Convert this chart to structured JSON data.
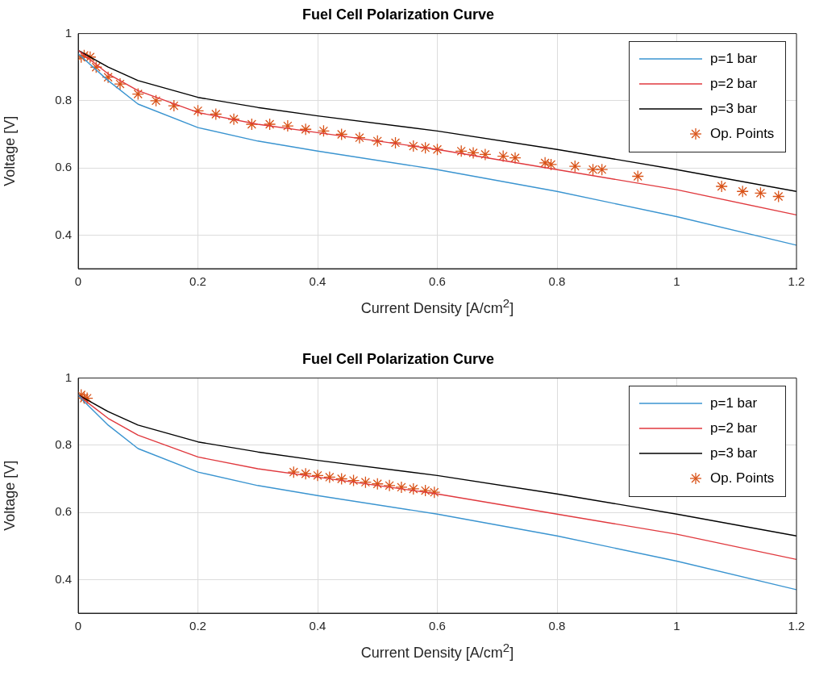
{
  "chart_data": [
    {
      "type": "line",
      "title": "Fuel Cell Polarization Curve",
      "xlabel": "Current Density [A/cm$^{2}$]",
      "ylabel": "Voltage [V]",
      "xlim": [
        0,
        1.2
      ],
      "xticks": [
        0,
        0.2,
        0.4,
        0.6,
        0.8,
        1,
        1.2
      ],
      "ylim": [
        0.3,
        1
      ],
      "yticks": [
        0.4,
        0.6,
        0.8,
        1
      ],
      "grid": true,
      "legend": "top right",
      "series": [
        {
          "name": "p=1 bar",
          "type": "line",
          "color": "#3a94d0",
          "x": [
            0,
            0.05,
            0.1,
            0.2,
            0.3,
            0.4,
            0.6,
            0.8,
            1,
            1.2
          ],
          "values": [
            0.94,
            0.86,
            0.79,
            0.72,
            0.68,
            0.65,
            0.595,
            0.53,
            0.455,
            0.37
          ]
        },
        {
          "name": "p=2 bar",
          "type": "line",
          "color": "#e0393e",
          "x": [
            0,
            0.05,
            0.1,
            0.2,
            0.3,
            0.4,
            0.6,
            0.8,
            1,
            1.2
          ],
          "values": [
            0.95,
            0.88,
            0.83,
            0.765,
            0.73,
            0.705,
            0.655,
            0.595,
            0.535,
            0.46
          ]
        },
        {
          "name": "p=3 bar",
          "type": "line",
          "color": "#000000",
          "x": [
            0,
            0.05,
            0.1,
            0.2,
            0.3,
            0.4,
            0.6,
            0.8,
            1,
            1.2
          ],
          "values": [
            0.95,
            0.9,
            0.86,
            0.81,
            0.78,
            0.755,
            0.71,
            0.655,
            0.595,
            0.53
          ]
        },
        {
          "name": "Op. Points",
          "type": "scatter",
          "marker": "cross",
          "color": "#d95319",
          "x": [
            0.005,
            0.01,
            0.02,
            0.03,
            0.05,
            0.07,
            0.1,
            0.13,
            0.16,
            0.2,
            0.23,
            0.26,
            0.29,
            0.32,
            0.35,
            0.38,
            0.41,
            0.44,
            0.47,
            0.5,
            0.53,
            0.56,
            0.58,
            0.6,
            0.64,
            0.66,
            0.68,
            0.71,
            0.73,
            0.78,
            0.79,
            0.83,
            0.86,
            0.875,
            0.935,
            1.075,
            1.11,
            1.14,
            1.17
          ],
          "values": [
            0.93,
            0.935,
            0.93,
            0.9,
            0.87,
            0.85,
            0.82,
            0.8,
            0.785,
            0.77,
            0.76,
            0.745,
            0.73,
            0.73,
            0.725,
            0.715,
            0.71,
            0.7,
            0.69,
            0.68,
            0.675,
            0.665,
            0.66,
            0.655,
            0.65,
            0.645,
            0.64,
            0.635,
            0.63,
            0.615,
            0.61,
            0.605,
            0.595,
            0.595,
            0.575,
            0.545,
            0.53,
            0.525,
            0.515
          ]
        }
      ]
    },
    {
      "type": "line",
      "title": "Fuel Cell Polarization Curve",
      "xlabel": "Current Density [A/cm$^{2}$]",
      "ylabel": "Voltage [V]",
      "xlim": [
        0,
        1.2
      ],
      "xticks": [
        0,
        0.2,
        0.4,
        0.6,
        0.8,
        1,
        1.2
      ],
      "ylim": [
        0.3,
        1
      ],
      "yticks": [
        0.4,
        0.6,
        0.8,
        1
      ],
      "grid": true,
      "legend": "top right",
      "series": [
        {
          "name": "p=1 bar",
          "type": "line",
          "color": "#3a94d0",
          "x": [
            0,
            0.01,
            0.05,
            0.1,
            0.2,
            0.3,
            0.4,
            0.6,
            0.8,
            1,
            1.2
          ],
          "values": [
            0.95,
            0.93,
            0.86,
            0.79,
            0.72,
            0.68,
            0.65,
            0.595,
            0.53,
            0.455,
            0.37
          ]
        },
        {
          "name": "p=2 bar",
          "type": "line",
          "color": "#e0393e",
          "x": [
            0,
            0.01,
            0.05,
            0.1,
            0.2,
            0.3,
            0.4,
            0.6,
            0.8,
            1,
            1.2
          ],
          "values": [
            0.95,
            0.935,
            0.88,
            0.83,
            0.765,
            0.73,
            0.705,
            0.655,
            0.595,
            0.535,
            0.46
          ]
        },
        {
          "name": "p=3 bar",
          "type": "line",
          "color": "#000000",
          "x": [
            0,
            0.01,
            0.05,
            0.1,
            0.2,
            0.3,
            0.4,
            0.6,
            0.8,
            1,
            1.2
          ],
          "values": [
            0.95,
            0.94,
            0.9,
            0.86,
            0.81,
            0.78,
            0.755,
            0.71,
            0.655,
            0.595,
            0.53
          ]
        },
        {
          "name": "Op. Points",
          "type": "scatter",
          "marker": "cross",
          "color": "#d95319",
          "x": [
            0.005,
            0.01,
            0.015,
            0.36,
            0.38,
            0.4,
            0.42,
            0.44,
            0.46,
            0.48,
            0.5,
            0.52,
            0.54,
            0.56,
            0.58,
            0.595
          ],
          "values": [
            0.95,
            0.94,
            0.94,
            0.72,
            0.715,
            0.71,
            0.705,
            0.7,
            0.695,
            0.69,
            0.685,
            0.68,
            0.675,
            0.67,
            0.665,
            0.66
          ]
        }
      ]
    }
  ]
}
